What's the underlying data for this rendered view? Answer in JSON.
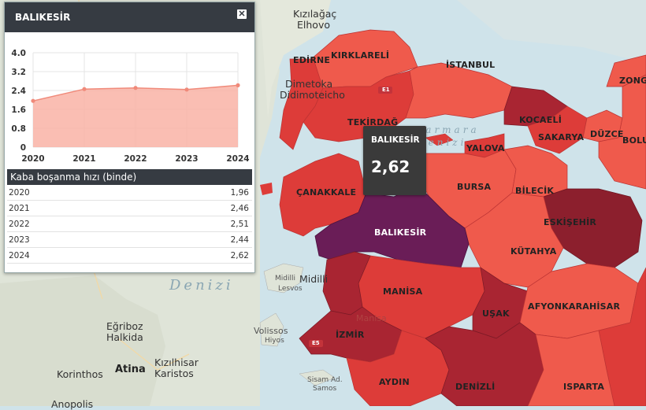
{
  "map": {
    "province_labels": {
      "edirne": "EDİRNE",
      "kirklareli": "KIRKLARELİ",
      "istanbul": "İSTANBUL",
      "zonguldak": "ZONG",
      "tekirdag": "TEKİRDAĞ",
      "kocaeli": "KOCAELİ",
      "duzce": "DÜZCE",
      "bolu": "BOLU",
      "sakarya": "SAKARYA",
      "yalova": "YALOVA",
      "canakkale": "ÇANAKKALE",
      "bursa": "BURSA",
      "bilecik": "BİLECİK",
      "balikesir": "BALIKESİR",
      "eskisehir": "ESKİŞEHİR",
      "kutahya": "KÜTAHYA",
      "manisa": "MANİSA",
      "usak": "UŞAK",
      "afyonkarahisar": "AFYONKARAHİSAR",
      "izmir": "İZMİR",
      "aydin": "AYDIN",
      "denizli": "DENİZLİ",
      "isparta": "ISPARTA"
    },
    "basemap_labels": {
      "kizilagac": "Kızılağaç",
      "elhovo": "Elhovo",
      "dimetoka": "Dimetoka",
      "didimoteicho": "Didimoteicho",
      "midilli": "Midilli",
      "midilli2": "Midilli",
      "lesvos": "Lesvos",
      "egriboz": "Eğriboz",
      "halkida": "Halkida",
      "korinthos": "Korinthos",
      "atina": "Atina",
      "kizilhisar": "Kızılhisar",
      "karistos": "Karistos",
      "anopolis": "Anopolis",
      "volissos": "Volissos",
      "hiyos": "Hiyos",
      "sisam": "Sisam Ad.",
      "samos": "Samos",
      "marmara": "Marmara",
      "denizi": "Denizi",
      "ege_denizi": "Denizi",
      "basemap_manisa": "Manisa"
    },
    "road_shields": [
      "E1",
      "E5"
    ],
    "colors": {
      "light": "#ef5a4c",
      "mid": "#dd3c39",
      "dark": "#a92532",
      "darker": "#8c1f2d",
      "selected": "#6a1d57"
    }
  },
  "tooltip": {
    "name": "BALIKESİR",
    "value": "2,62"
  },
  "panel": {
    "title": "BALIKESİR",
    "close_icon": "close-icon",
    "table_header": "Kaba boşanma hızı (binde)",
    "rows": [
      {
        "year": "2020",
        "value": "1,96"
      },
      {
        "year": "2021",
        "value": "2,46"
      },
      {
        "year": "2022",
        "value": "2,51"
      },
      {
        "year": "2023",
        "value": "2,44"
      },
      {
        "year": "2024",
        "value": "2,62"
      }
    ]
  },
  "chart_data": {
    "type": "area",
    "categories": [
      "2020",
      "2021",
      "2022",
      "2023",
      "2024"
    ],
    "values": [
      1.96,
      2.46,
      2.51,
      2.44,
      2.62
    ],
    "ylim": [
      0,
      4
    ],
    "yticks": [
      "0",
      "0.8",
      "1.6",
      "2.4",
      "3.2",
      "4.0"
    ],
    "grid": true,
    "fill_color": "#f9b3a6",
    "line_color": "#f08a7a"
  }
}
